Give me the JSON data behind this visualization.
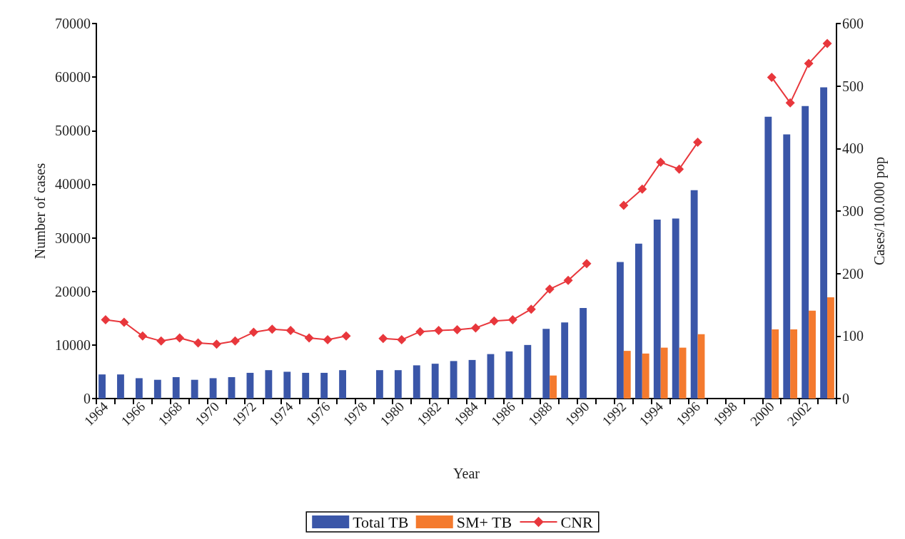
{
  "chart_data": {
    "type": "bar",
    "xlabel": "Year",
    "ylabel": "Number of cases",
    "y2label": "Cases/100.000 pop",
    "categories": [
      "1964",
      null,
      "1966",
      null,
      "1968",
      null,
      "1970",
      null,
      "1972",
      null,
      "1974",
      null,
      "1976",
      null,
      "1978",
      null,
      "1980",
      null,
      "1982",
      null,
      "1984",
      null,
      "1986",
      null,
      "1988",
      null,
      "1990",
      null,
      "1992",
      null,
      "1994",
      null,
      "1996",
      null,
      "1998",
      null,
      "2000",
      null,
      "2002",
      null
    ],
    "series": [
      {
        "name": "Total TB",
        "color": "#3a56a8",
        "values": [
          4500,
          4500,
          3800,
          3500,
          4000,
          3500,
          3800,
          4000,
          4800,
          5300,
          5000,
          4800,
          4800,
          5300,
          null,
          5300,
          5300,
          6200,
          6500,
          7000,
          7200,
          8300,
          8800,
          10000,
          13000,
          14200,
          16900,
          null,
          25500,
          28900,
          33400,
          33600,
          38900,
          null,
          null,
          null,
          52600,
          49300,
          54600,
          58100
        ]
      },
      {
        "name": "SM+ TB",
        "color": "#f47a2e",
        "values": [
          null,
          null,
          null,
          null,
          null,
          null,
          null,
          null,
          null,
          null,
          null,
          null,
          null,
          null,
          null,
          null,
          null,
          null,
          null,
          null,
          null,
          null,
          null,
          null,
          4300,
          null,
          null,
          null,
          8900,
          8400,
          9500,
          9500,
          12000,
          null,
          null,
          null,
          12900,
          12900,
          16400,
          18900
        ]
      },
      {
        "name": "CNR",
        "type": "line",
        "axis": "y2",
        "color": "#e8373c",
        "marker": "diamond",
        "values": [
          126,
          122,
          100,
          92,
          97,
          89,
          87,
          92,
          106,
          111,
          109,
          97,
          94,
          100,
          null,
          96,
          94,
          107,
          109,
          110,
          113,
          124,
          126,
          143,
          175,
          189,
          216,
          null,
          309,
          335,
          378,
          367,
          410,
          null,
          null,
          null,
          514,
          473,
          536,
          568
        ]
      }
    ],
    "ylim": [
      0,
      70000
    ],
    "yticks": [
      0,
      10000,
      20000,
      30000,
      40000,
      50000,
      60000,
      70000
    ],
    "y2lim": [
      0,
      600
    ],
    "y2ticks": [
      0,
      100,
      200,
      300,
      400,
      500,
      600
    ],
    "grid": false,
    "legend": "bottom"
  }
}
